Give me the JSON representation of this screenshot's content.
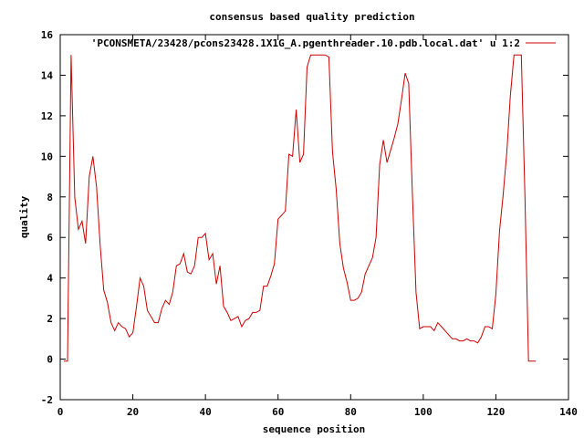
{
  "chart_data": {
    "type": "line",
    "title": "consensus based quality prediction",
    "xlabel": "sequence position",
    "ylabel": "quality",
    "xlim": [
      0,
      140
    ],
    "ylim": [
      -2,
      16
    ],
    "xticks": [
      0,
      20,
      40,
      60,
      80,
      100,
      120,
      140
    ],
    "yticks": [
      -2,
      0,
      2,
      4,
      6,
      8,
      10,
      12,
      14,
      16
    ],
    "grid": false,
    "legend_position": "top-right",
    "series": [
      {
        "name": "'PCONSMETA/23428/pcons23428.1X1G_A.pgenthreader.10.pdb.local.dat' u 1:2",
        "color": "#cc0000",
        "x": [
          1,
          2,
          3,
          4,
          5,
          6,
          7,
          8,
          9,
          10,
          11,
          12,
          13,
          14,
          15,
          16,
          17,
          18,
          19,
          20,
          21,
          22,
          23,
          24,
          25,
          26,
          27,
          28,
          29,
          30,
          31,
          32,
          33,
          34,
          35,
          36,
          37,
          38,
          39,
          40,
          41,
          42,
          43,
          44,
          45,
          46,
          47,
          48,
          49,
          50,
          51,
          52,
          53,
          54,
          55,
          56,
          57,
          58,
          59,
          60,
          61,
          62,
          63,
          64,
          65,
          66,
          67,
          68,
          69,
          70,
          71,
          72,
          73,
          74,
          75,
          76,
          77,
          78,
          79,
          80,
          81,
          82,
          83,
          84,
          85,
          86,
          87,
          88,
          89,
          90,
          91,
          92,
          93,
          94,
          95,
          96,
          97,
          98,
          99,
          100,
          101,
          102,
          103,
          104,
          105,
          106,
          107,
          108,
          109,
          110,
          111,
          112,
          113,
          114,
          115,
          116,
          117,
          118,
          119,
          120,
          121,
          122,
          123,
          124,
          125,
          126,
          127,
          128,
          129,
          130,
          131
        ],
        "y": [
          -0.1,
          -0.1,
          15.0,
          8.0,
          6.4,
          6.8,
          5.7,
          9.0,
          10.0,
          8.5,
          5.6,
          3.4,
          2.8,
          1.8,
          1.4,
          1.8,
          1.6,
          1.5,
          1.1,
          1.3,
          2.6,
          4.0,
          3.6,
          2.4,
          2.1,
          1.8,
          1.8,
          2.5,
          2.9,
          2.7,
          3.3,
          4.6,
          4.7,
          5.2,
          4.3,
          4.2,
          4.6,
          6.0,
          6.0,
          6.2,
          4.9,
          5.2,
          3.7,
          4.6,
          2.6,
          2.3,
          1.9,
          2.0,
          2.1,
          1.6,
          1.9,
          2.0,
          2.3,
          2.3,
          2.4,
          3.6,
          3.6,
          4.1,
          4.7,
          6.9,
          7.1,
          7.3,
          10.1,
          10.0,
          12.3,
          9.7,
          10.1,
          14.4,
          15.0,
          15.0,
          15.0,
          15.0,
          15.0,
          14.9,
          10.2,
          8.4,
          5.7,
          4.5,
          3.8,
          2.9,
          2.9,
          3.0,
          3.3,
          4.2,
          4.6,
          5.0,
          6.0,
          9.6,
          10.8,
          9.7,
          10.3,
          10.9,
          11.6,
          12.8,
          14.1,
          13.6,
          8.2,
          3.3,
          1.5,
          1.6,
          1.6,
          1.6,
          1.4,
          1.8,
          1.6,
          1.4,
          1.2,
          1.0,
          1.0,
          0.9,
          0.9,
          1.0,
          0.9,
          0.9,
          0.8,
          1.1,
          1.6,
          1.6,
          1.5,
          3.2,
          6.3,
          8.1,
          10.2,
          13.0,
          15.0,
          15.0,
          15.0,
          8.0,
          -0.1,
          -0.1,
          -0.1
        ]
      }
    ]
  }
}
